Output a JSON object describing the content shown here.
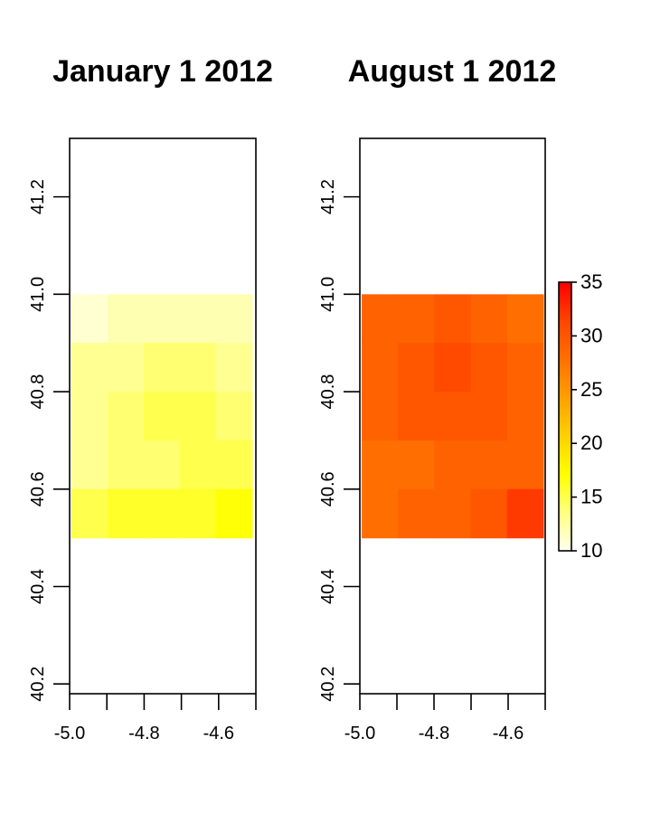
{
  "chart_data": [
    {
      "type": "heatmap",
      "title": "January 1 2012",
      "xlabel": "",
      "ylabel": "",
      "xlim": [
        -5.0,
        -4.5
      ],
      "ylim": [
        40.18,
        41.32
      ],
      "xticks": [
        -5.0,
        -4.9,
        -4.8,
        -4.7,
        -4.6,
        -4.5
      ],
      "xtick_labels": [
        "-5.0",
        "-4.8",
        "-4.6"
      ],
      "xtick_label_values": [
        -5.0,
        -4.8,
        -4.6
      ],
      "yticks": [
        40.2,
        40.4,
        40.6,
        40.8,
        41.0,
        41.2
      ],
      "ytick_labels": [
        "40.2",
        "40.4",
        "40.6",
        "40.8",
        "41.0",
        "41.2"
      ],
      "grid": false,
      "raster_extent": {
        "x": [
          -4.995,
          -4.51
        ],
        "y": [
          40.5,
          41.0
        ]
      },
      "columns": [
        -4.95,
        -4.85,
        -4.75,
        -4.65,
        -4.55
      ],
      "rows": [
        40.95,
        40.85,
        40.75,
        40.65,
        40.55
      ],
      "values": [
        [
          11,
          12,
          12,
          12,
          12
        ],
        [
          13,
          13,
          14,
          14,
          13
        ],
        [
          13,
          14,
          15,
          15,
          14
        ],
        [
          13,
          14,
          14,
          15,
          15
        ],
        [
          15,
          16,
          16,
          16,
          17
        ]
      ]
    },
    {
      "type": "heatmap",
      "title": "August 1 2012",
      "xlabel": "",
      "ylabel": "",
      "xlim": [
        -5.0,
        -4.5
      ],
      "ylim": [
        40.18,
        41.32
      ],
      "xticks": [
        -5.0,
        -4.9,
        -4.8,
        -4.7,
        -4.6,
        -4.5
      ],
      "xtick_labels": [
        "-5.0",
        "-4.8",
        "-4.6"
      ],
      "xtick_label_values": [
        -5.0,
        -4.8,
        -4.6
      ],
      "yticks": [
        40.2,
        40.4,
        40.6,
        40.8,
        41.0,
        41.2
      ],
      "ytick_labels": [
        "40.2",
        "40.4",
        "40.6",
        "40.8",
        "41.0",
        "41.2"
      ],
      "grid": false,
      "raster_extent": {
        "x": [
          -4.995,
          -4.505
        ],
        "y": [
          40.5,
          41.0
        ]
      },
      "columns": [
        -4.95,
        -4.85,
        -4.75,
        -4.65,
        -4.55
      ],
      "rows": [
        40.95,
        40.85,
        40.75,
        40.65,
        40.55
      ],
      "values": [
        [
          29,
          29,
          30,
          29,
          28
        ],
        [
          29,
          30,
          31,
          30,
          29
        ],
        [
          29,
          30,
          30,
          30,
          29
        ],
        [
          28,
          28,
          29,
          29,
          29
        ],
        [
          28,
          29,
          29,
          30,
          32
        ]
      ]
    }
  ],
  "legend": {
    "placement": "right",
    "min": 10,
    "max": 35,
    "ticks": [
      10,
      15,
      20,
      25,
      30,
      35
    ],
    "tick_labels": [
      "10",
      "15",
      "20",
      "25",
      "30",
      "35"
    ],
    "colors": [
      "#FFFFF0",
      "#FFFF80",
      "#FFFF00",
      "#FFD000",
      "#FFA000",
      "#FF7000",
      "#FF4500",
      "#FF0000"
    ]
  }
}
